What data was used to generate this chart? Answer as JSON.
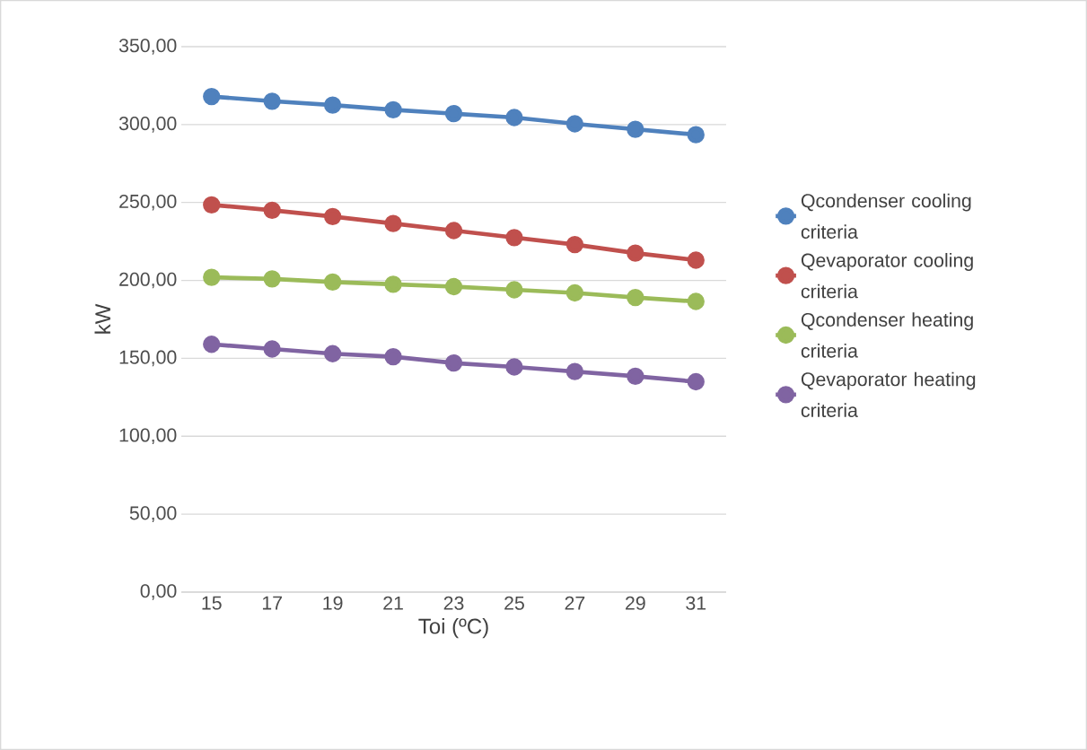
{
  "chart_data": {
    "type": "line",
    "xlabel": "Toi (ºC)",
    "ylabel": "kW",
    "categories": [
      "15",
      "17",
      "19",
      "21",
      "23",
      "25",
      "27",
      "29",
      "31"
    ],
    "series": [
      {
        "name": "Qcondenser cooling criteria",
        "color": "#4f81bd",
        "values": [
          318,
          315,
          312.5,
          309.5,
          307,
          304.5,
          300.5,
          297,
          293.5
        ]
      },
      {
        "name": "Qevaporator cooling criteria",
        "color": "#c0504d",
        "values": [
          248.5,
          245,
          241,
          236.5,
          232,
          227.5,
          223,
          217.5,
          213
        ]
      },
      {
        "name": "Qcondenser heating criteria",
        "color": "#9bbb59",
        "values": [
          202,
          201,
          199,
          197.5,
          196,
          194,
          192,
          189,
          186.5
        ]
      },
      {
        "name": "Qevaporator heating criteria",
        "color": "#8064a2",
        "values": [
          159,
          156,
          153,
          151,
          147,
          144.5,
          141.5,
          138.5,
          135
        ]
      }
    ],
    "ylim": [
      0,
      350
    ],
    "yticks": [
      {
        "value": 0,
        "label": "0,00"
      },
      {
        "value": 50,
        "label": "50,00"
      },
      {
        "value": 100,
        "label": "100,00"
      },
      {
        "value": 150,
        "label": "150,00"
      },
      {
        "value": 200,
        "label": "200,00"
      },
      {
        "value": 250,
        "label": "250,00"
      },
      {
        "value": 300,
        "label": "300,00"
      },
      {
        "value": 350,
        "label": "350,00"
      }
    ],
    "grid": "y",
    "legend": "right",
    "marker": "circle",
    "line_style": "solid"
  }
}
